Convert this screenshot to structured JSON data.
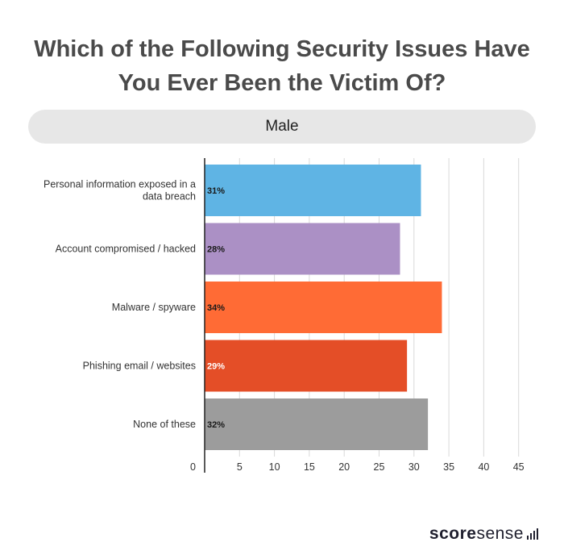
{
  "title_lines": [
    "Which of the Following Security Issues Have",
    "You Ever Been the Victim Of?"
  ],
  "filter": {
    "label": "Male"
  },
  "brand": {
    "bold": "score",
    "light": "sense"
  },
  "chart_data": {
    "type": "bar",
    "orientation": "horizontal",
    "title": "Which of the Following Security Issues Have You Ever Been the Victim Of?",
    "subtitle": "Male",
    "categories": [
      [
        "Personal information exposed in a",
        "data breach"
      ],
      [
        "Account compromised / hacked"
      ],
      [
        "Malware / spyware"
      ],
      [
        "Phishing email / websites"
      ],
      [
        "None of these"
      ]
    ],
    "values": [
      31,
      28,
      34,
      29,
      32
    ],
    "value_labels": [
      "31%",
      "28%",
      "34%",
      "29%",
      "32%"
    ],
    "colors": [
      "#5fb4e4",
      "#ab90c5",
      "#ff6b35",
      "#e44e27",
      "#9c9c9c"
    ],
    "label_colors": [
      "#1a1a1a",
      "#1a1a1a",
      "#1a1a1a",
      "#ffffff",
      "#1a1a1a"
    ],
    "xlim": [
      0,
      45
    ],
    "xticks": [
      0,
      5,
      10,
      15,
      20,
      25,
      30,
      35,
      40,
      45
    ],
    "grid": true
  }
}
